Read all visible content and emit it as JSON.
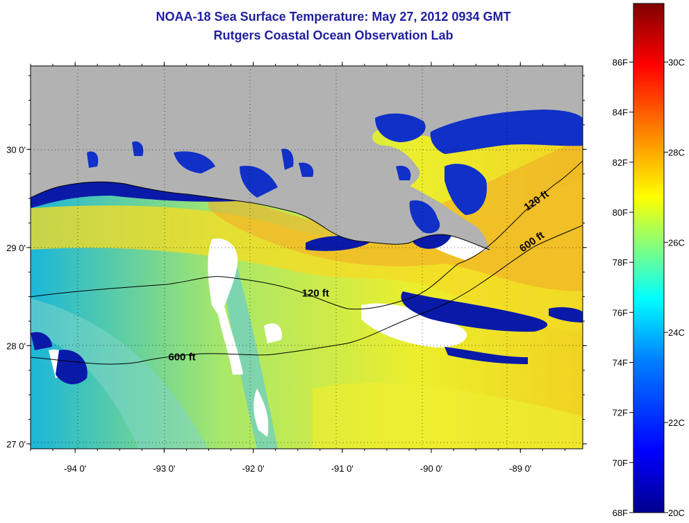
{
  "title": {
    "line1": "NOAA-18 Sea Surface Temperature:  May 27, 2012 0934 GMT",
    "line2": "Rutgers Coastal Ocean Observation Lab"
  },
  "map": {
    "lon_range": [
      -94.5,
      -88.3
    ],
    "lat_range": [
      26.95,
      30.85
    ],
    "lat_ticks": [
      {
        "value": 30.0,
        "label": "30 0'"
      },
      {
        "value": 29.0,
        "label": "29 0'"
      },
      {
        "value": 28.0,
        "label": "28 0'"
      },
      {
        "value": 27.0,
        "label": "27 0'"
      }
    ],
    "lon_ticks": [
      {
        "value": -94.0,
        "label": "-94 0'"
      },
      {
        "value": -93.0,
        "label": "-93 0'"
      },
      {
        "value": -92.0,
        "label": "-92 0'"
      },
      {
        "value": -91.0,
        "label": "-91 0'"
      },
      {
        "value": -90.0,
        "label": "-90 0'"
      },
      {
        "value": -89.0,
        "label": "-89 0'"
      }
    ],
    "grid": "dotted",
    "land_color": "#b2b2b2",
    "contour_labels": [
      {
        "text": "120 ft",
        "lon": -91.3,
        "lat": 28.5
      },
      {
        "text": "600 ft",
        "lon": -92.8,
        "lat": 27.85
      },
      {
        "text": "120 ft",
        "lon": -88.8,
        "lat": 29.45
      },
      {
        "text": "600 ft",
        "lon": -88.85,
        "lat": 29.03
      }
    ]
  },
  "colorbar": {
    "range_c": [
      20,
      31.3
    ],
    "fahrenheit_labels": [
      "86F",
      "84F",
      "82F",
      "80F",
      "78F",
      "76F",
      "74F",
      "72F",
      "70F",
      "68F"
    ],
    "celsius_labels": [
      "30C",
      "28C",
      "26C",
      "24C",
      "22C",
      "20C"
    ],
    "colors": [
      "#00008f",
      "#0000ff",
      "#0080ff",
      "#00ffff",
      "#80ff80",
      "#ffff00",
      "#ff8000",
      "#ff0000",
      "#800000"
    ]
  }
}
